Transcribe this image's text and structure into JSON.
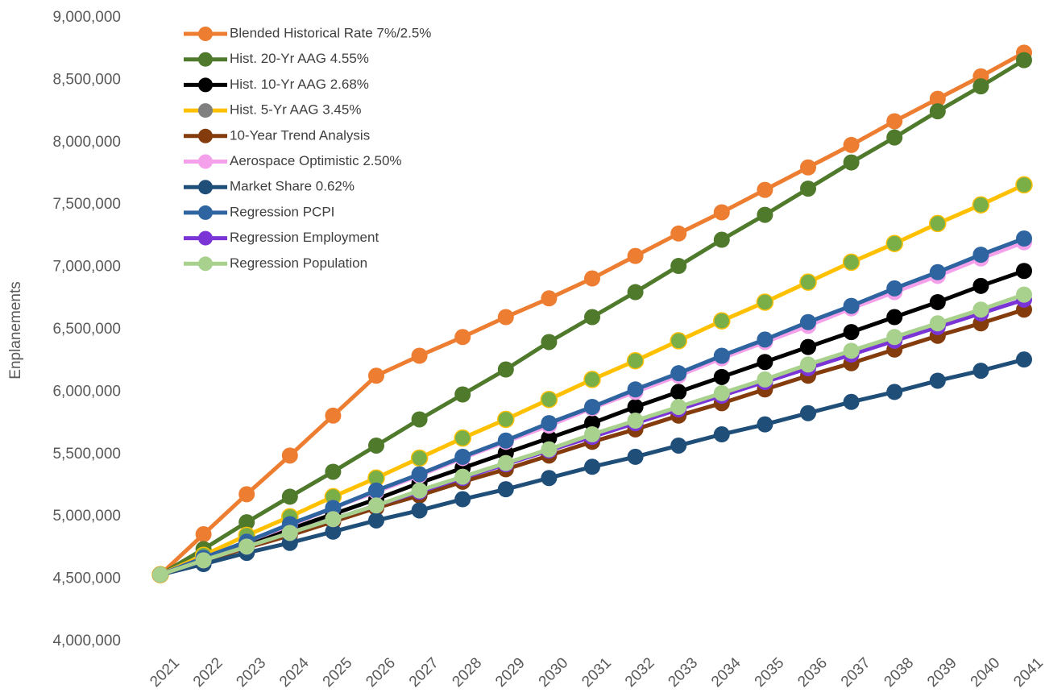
{
  "chart_data": {
    "type": "line",
    "y_label": "Enplanements",
    "categories": [
      "2021",
      "2022",
      "2023",
      "2024",
      "2025",
      "2026",
      "2027",
      "2028",
      "2029",
      "2030",
      "2031",
      "2032",
      "2033",
      "2034",
      "2035",
      "2036",
      "2037",
      "2038",
      "2039",
      "2040",
      "2041"
    ],
    "ylim": [
      4000000,
      9000000
    ],
    "yticks": [
      {
        "value": 4000000,
        "label": "4,000,000"
      },
      {
        "value": 4500000,
        "label": "4,500,000"
      },
      {
        "value": 5000000,
        "label": "5,000,000"
      },
      {
        "value": 5500000,
        "label": "5,500,000"
      },
      {
        "value": 6000000,
        "label": "6,000,000"
      },
      {
        "value": 6500000,
        "label": "6,500,000"
      },
      {
        "value": 7000000,
        "label": "7,000,000"
      },
      {
        "value": 7500000,
        "label": "7,500,000"
      },
      {
        "value": 8000000,
        "label": "8,000,000"
      },
      {
        "value": 8500000,
        "label": "8,500,000"
      },
      {
        "value": 9000000,
        "label": "9,000,000"
      }
    ],
    "grid": false,
    "legend": "upper left",
    "series": [
      {
        "name": "Blended Historical Rate 7%/2.5%",
        "color": "#ED7D31",
        "values": [
          4535000,
          4859000,
          5180000,
          5490000,
          5810000,
          6130000,
          6290000,
          6440000,
          6600000,
          6750000,
          6910000,
          7090000,
          7270000,
          7440000,
          7620000,
          7800000,
          7980000,
          8170000,
          8350000,
          8530000,
          8720000
        ]
      },
      {
        "name": "Hist. 20-Yr AAG 4.55%",
        "color": "#4F7A2C",
        "values": [
          4535000,
          4740000,
          4955000,
          5160000,
          5360000,
          5570000,
          5780000,
          5980000,
          6180000,
          6400000,
          6600000,
          6800000,
          7010000,
          7220000,
          7420000,
          7630000,
          7840000,
          8040000,
          8250000,
          8450000,
          8660000
        ]
      },
      {
        "name": "Hist. 10-Yr AAG 2.68%",
        "color": "#000000",
        "values": [
          4535000,
          4660000,
          4780000,
          4900000,
          5020000,
          5140000,
          5270000,
          5390000,
          5510000,
          5630000,
          5750000,
          5880000,
          6000000,
          6120000,
          6240000,
          6360000,
          6480000,
          6600000,
          6720000,
          6850000,
          6970000
        ]
      },
      {
        "name": "Hist. 5-Yr AAG 3.45%",
        "color": "#FFC000",
        "marker_color": "#7AAE46",
        "values": [
          4535000,
          4690000,
          4850000,
          5000000,
          5160000,
          5310000,
          5470000,
          5630000,
          5780000,
          5940000,
          6100000,
          6250000,
          6410000,
          6570000,
          6720000,
          6880000,
          7040000,
          7190000,
          7350000,
          7500000,
          7660000
        ]
      },
      {
        "name": "10-Year Trend Analysis",
        "color": "#843C0C",
        "values": [
          4535000,
          4640000,
          4750000,
          4850000,
          4960000,
          5070000,
          5170000,
          5280000,
          5380000,
          5490000,
          5600000,
          5700000,
          5810000,
          5910000,
          6020000,
          6130000,
          6230000,
          6340000,
          6450000,
          6550000,
          6660000
        ]
      },
      {
        "name": "Aerospace Optimistic 2.50%",
        "color": "#F4A0EA",
        "values": [
          4535000,
          4670000,
          4800000,
          4930000,
          5070000,
          5200000,
          5330000,
          5470000,
          5600000,
          5730000,
          5870000,
          6000000,
          6130000,
          6270000,
          6400000,
          6530000,
          6670000,
          6800000,
          6930000,
          7070000,
          7200000
        ]
      },
      {
        "name": "Market Share 0.62%",
        "color": "#1F4E79",
        "values": [
          4535000,
          4620000,
          4710000,
          4790000,
          4880000,
          4970000,
          5050000,
          5140000,
          5220000,
          5310000,
          5400000,
          5480000,
          5570000,
          5660000,
          5740000,
          5830000,
          5920000,
          6000000,
          6090000,
          6170000,
          6260000
        ]
      },
      {
        "name": "Regression PCPI",
        "color": "#2E64A0",
        "values": [
          4535000,
          4670000,
          4800000,
          4940000,
          5070000,
          5210000,
          5340000,
          5480000,
          5610000,
          5750000,
          5880000,
          6020000,
          6150000,
          6290000,
          6420000,
          6560000,
          6690000,
          6830000,
          6960000,
          7100000,
          7230000
        ]
      },
      {
        "name": "Regression Employment",
        "color": "#7B35D6",
        "values": [
          4535000,
          4650000,
          4760000,
          4870000,
          4980000,
          5090000,
          5200000,
          5310000,
          5420000,
          5530000,
          5640000,
          5750000,
          5860000,
          5970000,
          6080000,
          6190000,
          6300000,
          6410000,
          6520000,
          6630000,
          6740000
        ]
      },
      {
        "name": "Regression Population",
        "color": "#A9D18E",
        "values": [
          4535000,
          4650000,
          4760000,
          4870000,
          4980000,
          5090000,
          5210000,
          5320000,
          5430000,
          5540000,
          5660000,
          5770000,
          5880000,
          5990000,
          6100000,
          6220000,
          6330000,
          6440000,
          6550000,
          6660000,
          6780000
        ]
      }
    ]
  }
}
